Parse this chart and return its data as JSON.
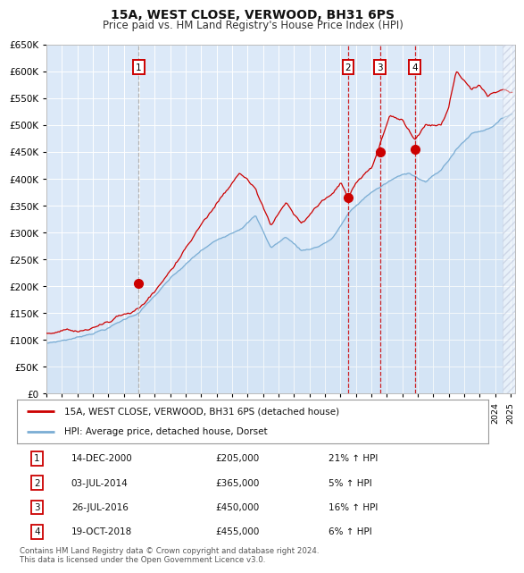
{
  "title": "15A, WEST CLOSE, VERWOOD, BH31 6PS",
  "subtitle": "Price paid vs. HM Land Registry's House Price Index (HPI)",
  "title_fontsize": 10,
  "subtitle_fontsize": 8.5,
  "bg_color": "#dce9f8",
  "grid_color": "#ffffff",
  "sale_color": "#cc0000",
  "hpi_color": "#7aadd4",
  "transactions": [
    {
      "label": "1",
      "date_num": 2000.96,
      "price": 205000,
      "date_str": "14-DEC-2000",
      "pct": "21%",
      "dashed": false
    },
    {
      "label": "2",
      "date_num": 2014.5,
      "price": 365000,
      "date_str": "03-JUL-2014",
      "pct": "5%",
      "dashed": true
    },
    {
      "label": "3",
      "date_num": 2016.56,
      "price": 450000,
      "date_str": "26-JUL-2016",
      "pct": "16%",
      "dashed": true
    },
    {
      "label": "4",
      "date_num": 2018.8,
      "price": 455000,
      "date_str": "19-OCT-2018",
      "pct": "6%",
      "dashed": true
    }
  ],
  "legend_label_red": "15A, WEST CLOSE, VERWOOD, BH31 6PS (detached house)",
  "legend_label_blue": "HPI: Average price, detached house, Dorset",
  "footer": "Contains HM Land Registry data © Crown copyright and database right 2024.\nThis data is licensed under the Open Government Licence v3.0.",
  "table_rows": [
    [
      "1",
      "14-DEC-2000",
      "£205,000",
      "21% ↑ HPI"
    ],
    [
      "2",
      "03-JUL-2014",
      "£365,000",
      "5% ↑ HPI"
    ],
    [
      "3",
      "26-JUL-2016",
      "£450,000",
      "16% ↑ HPI"
    ],
    [
      "4",
      "19-OCT-2018",
      "£455,000",
      "6% ↑ HPI"
    ]
  ],
  "x_min": 1995,
  "x_max": 2025.3,
  "y_min": 0,
  "y_max": 650000,
  "hatch_start": 2024.5
}
